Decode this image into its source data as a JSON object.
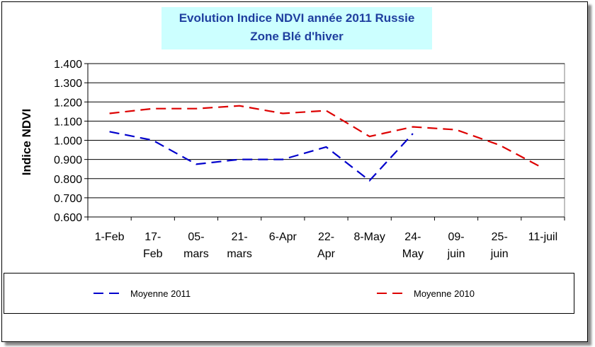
{
  "chart_data": {
    "type": "line",
    "title": "Evolution Indice NDVI année 2011 Russie",
    "subtitle": "Zone Blé d'hiver",
    "ylabel": "Indice NDVI",
    "xlabel": "",
    "ylim": [
      0.6,
      1.4
    ],
    "yticks": [
      "0.600",
      "0.700",
      "0.800",
      "0.900",
      "1.000",
      "1.100",
      "1.200",
      "1.300",
      "1.400"
    ],
    "categories": [
      [
        "1-Feb"
      ],
      [
        "17-",
        "Feb"
      ],
      [
        "05-",
        "mars"
      ],
      [
        "21-",
        "mars"
      ],
      [
        "6-Apr"
      ],
      [
        "22-",
        "Apr"
      ],
      [
        "8-May"
      ],
      [
        "24-",
        "May"
      ],
      [
        "09-",
        "juin"
      ],
      [
        "25-",
        "juin"
      ],
      [
        "11-juil"
      ]
    ],
    "grid": true,
    "legend_position": "bottom",
    "series": [
      {
        "name": "Moyenne 2011",
        "color": "#0000cc",
        "values": [
          1.045,
          1.0,
          0.875,
          0.9,
          0.9,
          0.965,
          0.79,
          1.035,
          null,
          null,
          null
        ]
      },
      {
        "name": "Moyenne 2010",
        "color": "#dd0000",
        "values": [
          1.14,
          1.165,
          1.165,
          1.18,
          1.14,
          1.155,
          1.02,
          1.07,
          1.055,
          0.975,
          0.855
        ]
      }
    ]
  }
}
